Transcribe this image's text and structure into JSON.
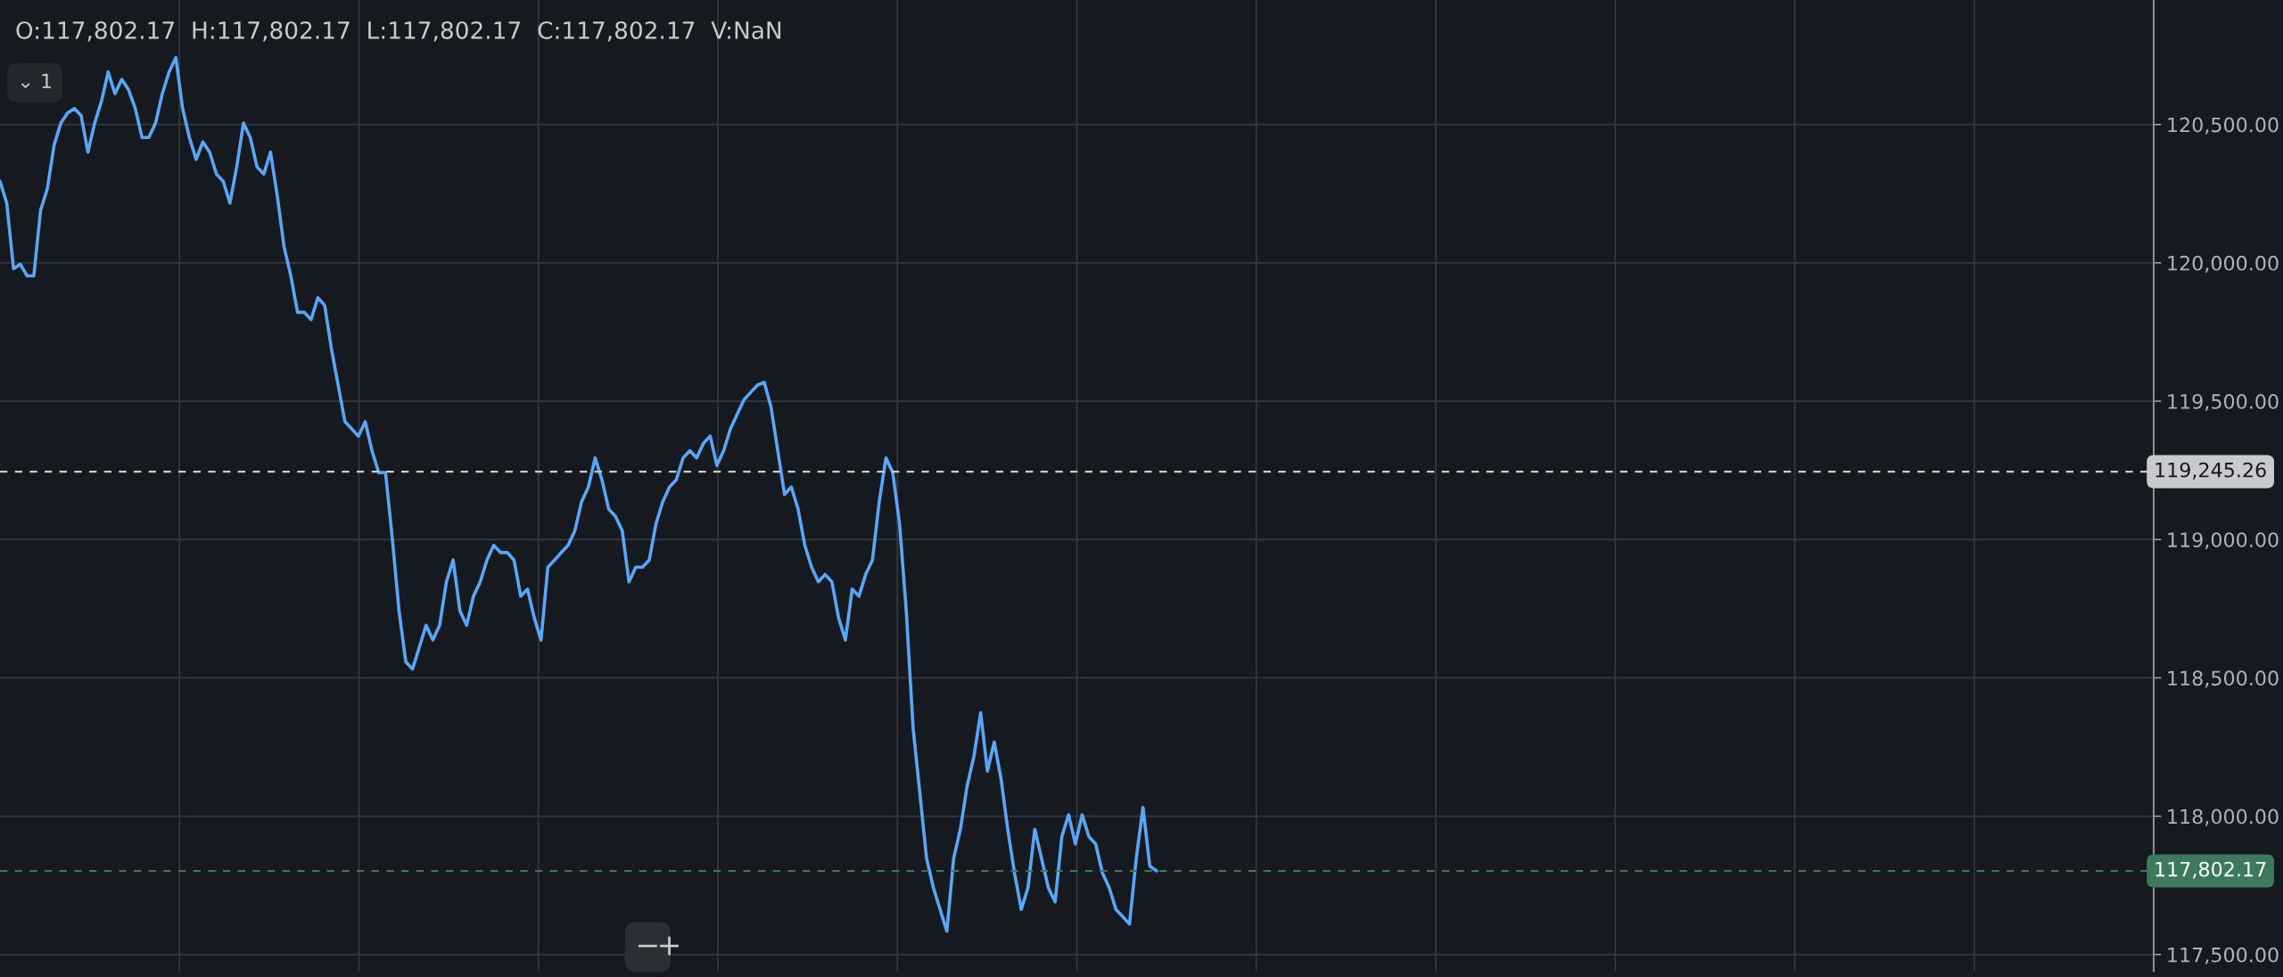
{
  "chart_data": {
    "type": "line",
    "categories": [
      null,
      null,
      null,
      null,
      null,
      null,
      null,
      null,
      null,
      null,
      null,
      null,
      null,
      null,
      null,
      null,
      null,
      null,
      null,
      null,
      null,
      null,
      null,
      null,
      null,
      null,
      null,
      null,
      null,
      null,
      null,
      null,
      null,
      null,
      null,
      null,
      null,
      null,
      null,
      null,
      null,
      null,
      null,
      null,
      null,
      null,
      null,
      null,
      null,
      null,
      null,
      null,
      null,
      null,
      null,
      null,
      null,
      null,
      null,
      null,
      null,
      null,
      null,
      null,
      null,
      null,
      null,
      null,
      null,
      null,
      null,
      null,
      null,
      null,
      null,
      null,
      null,
      null,
      null,
      null,
      null,
      null,
      null,
      null,
      null,
      null,
      null,
      null,
      null,
      null,
      null,
      null,
      null,
      null,
      null,
      null,
      null,
      null,
      null,
      null,
      null,
      null,
      null,
      null,
      null,
      null,
      null,
      null,
      null,
      null,
      null,
      null,
      null,
      null,
      null,
      null,
      null,
      null,
      null,
      null,
      null,
      null,
      null,
      null,
      null,
      null,
      null,
      null,
      null,
      null,
      null,
      null,
      null,
      null,
      null,
      null,
      null,
      null,
      null,
      null,
      null,
      null,
      null,
      null,
      null,
      null,
      null,
      null,
      null,
      null,
      null,
      null,
      null,
      null,
      null,
      null,
      null,
      null,
      null,
      null,
      null,
      null,
      null,
      null,
      null,
      null,
      null,
      null,
      null,
      null,
      null,
      null
    ],
    "series": [
      {
        "color": "#5aa6f5",
        "values": [
          120295,
          120216,
          119979,
          119995,
          119953,
          119953,
          120190,
          120268,
          120426,
          120505,
          120542,
          120558,
          120532,
          120400,
          120505,
          120584,
          120690,
          120611,
          120663,
          120626,
          120558,
          120453,
          120453,
          120505,
          120611,
          120690,
          120742,
          120558,
          120453,
          120374,
          120437,
          120400,
          120321,
          120295,
          120216,
          120347,
          120505,
          120453,
          120347,
          120321,
          120400,
          120242,
          120058,
          119953,
          119821,
          119821,
          119795,
          119874,
          119847,
          119690,
          119558,
          119426,
          119400,
          119374,
          119426,
          119321,
          119242,
          119242,
          119005,
          118742,
          118558,
          118532,
          118611,
          118690,
          118637,
          118690,
          118847,
          118926,
          118742,
          118690,
          118795,
          118847,
          118926,
          118979,
          118953,
          118953,
          118926,
          118795,
          118821,
          118716,
          118637,
          118900,
          118926,
          118953,
          118979,
          119032,
          119137,
          119190,
          119295,
          119216,
          119110,
          119084,
          119032,
          118847,
          118900,
          118900,
          118926,
          119058,
          119137,
          119190,
          119216,
          119295,
          119321,
          119295,
          119347,
          119374,
          119268,
          119321,
          119400,
          119453,
          119505,
          119532,
          119558,
          119568,
          119479,
          119321,
          119163,
          119190,
          119110,
          118979,
          118900,
          118847,
          118874,
          118847,
          118716,
          118637,
          118821,
          118795,
          118874,
          118926,
          119137,
          119295,
          119242,
          119058,
          118742,
          118321,
          118084,
          117847,
          117742,
          117663,
          117584,
          117847,
          117953,
          118110,
          118216,
          118374,
          118163,
          118268,
          118137,
          117953,
          117795,
          117663,
          117742,
          117953,
          117847,
          117742,
          117690,
          117926,
          118005,
          117900,
          118005,
          117926,
          117900,
          117795,
          117742,
          117663,
          117637,
          117610,
          117847,
          118032,
          117820,
          117802.17
        ]
      }
    ],
    "ylim": [
      117440,
      120950
    ],
    "yticks": [
      {
        "value": 117500,
        "label": "117,500.00"
      },
      {
        "value": 118000,
        "label": "118,000.00"
      },
      {
        "value": 118500,
        "label": "118,500.00"
      },
      {
        "value": 119000,
        "label": "119,000.00"
      },
      {
        "value": 119500,
        "label": "119,500.00"
      },
      {
        "value": 120000,
        "label": "120,000.00"
      },
      {
        "value": 120500,
        "label": "120,500.00"
      }
    ],
    "ref_lines": [
      {
        "axis": "y",
        "value": 119245.26,
        "label": "119,245.26",
        "color": "#c8cacd",
        "line_style": "dashed"
      },
      {
        "axis": "y",
        "value": 117802.17,
        "label": "117,802.17",
        "color": "#3d7a5c",
        "line_style": "dashed"
      }
    ],
    "annotations": [
      "O:117,802.17  H:117,802.17  L:117,802.17  C:117,802.17  V:NaN",
      "⌄ 1",
      "−",
      "+"
    ],
    "grid": true,
    "legend": false
  }
}
